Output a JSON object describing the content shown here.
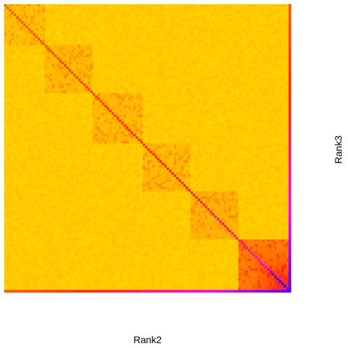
{
  "chart_data": {
    "type": "heatmap",
    "title": "",
    "xlabel": "Rank2",
    "ylabel": "Rank3",
    "grid": false,
    "legend": "none",
    "rows": 120,
    "cols": 120,
    "blocks": [
      {
        "name": "",
        "start": 0,
        "end": 17,
        "mean": 0.22
      },
      {
        "name": "",
        "start": 17,
        "end": 37,
        "mean": 0.24
      },
      {
        "name": "",
        "start": 37,
        "end": 58,
        "mean": 0.24
      },
      {
        "name": "",
        "start": 58,
        "end": 78,
        "mean": 0.24
      },
      {
        "name": "",
        "start": 78,
        "end": 98,
        "mean": 0.26
      },
      {
        "name": "",
        "start": 98,
        "end": 120,
        "mean": 0.42
      }
    ],
    "value_range": [
      0,
      1
    ],
    "colormap": [
      "#ffff00",
      "#ffd700",
      "#ffa500",
      "#ff6a00",
      "#ff2a00",
      "#ff00ff",
      "#0000ff"
    ]
  }
}
